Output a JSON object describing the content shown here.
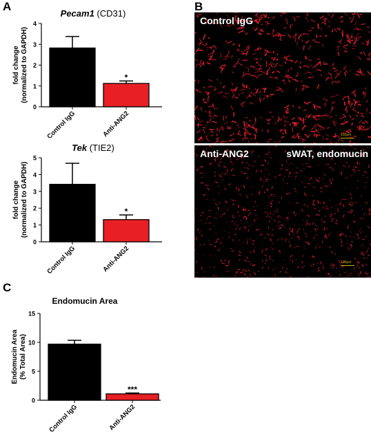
{
  "panels": {
    "a": {
      "letter": "A"
    },
    "b": {
      "letter": "B"
    },
    "c": {
      "letter": "C"
    }
  },
  "micrographs": {
    "top": {
      "label": "Control IgG",
      "scale_label": "100μm"
    },
    "bottom": {
      "label_left": "Anti-ANG2",
      "label_right": "sWAT, endomucin",
      "scale_label": "100μm"
    }
  },
  "colors": {
    "control": "#000000",
    "treatment": "#e82025",
    "stain": "#e8202a",
    "scale_bar": "#d4b000"
  },
  "chart_data": [
    {
      "type": "bar",
      "title_gene": "Pecam1",
      "title_rest": " (CD31)",
      "ylabel_line1": "fold change",
      "ylabel_line2": "(normalized to GAPDH)",
      "categories": [
        "Control IgG",
        "Anti-ANG2"
      ],
      "values": [
        2.82,
        1.12
      ],
      "errors": [
        0.55,
        0.12
      ],
      "annotations": [
        "",
        "*"
      ],
      "ylim": [
        0,
        4
      ],
      "yticks": [
        "0",
        "1",
        "2",
        "3",
        "4"
      ]
    },
    {
      "type": "bar",
      "title_gene": "Tek",
      "title_rest": " (TIE2)",
      "ylabel_line1": "fold change",
      "ylabel_line2": "(normalized to GAPDH)",
      "categories": [
        "Control IgG",
        "Anti-ANG2"
      ],
      "values": [
        3.42,
        1.32
      ],
      "errors": [
        1.25,
        0.28
      ],
      "annotations": [
        "",
        "*"
      ],
      "ylim": [
        0,
        5
      ],
      "yticks": [
        "0",
        "1",
        "2",
        "3",
        "4",
        "5"
      ]
    },
    {
      "type": "bar",
      "title": "Endomucin Area",
      "ylabel_line1": "Endomucin Area",
      "ylabel_line2": "(% Total Area)",
      "categories": [
        "Control IgG",
        "Anti-ANG2"
      ],
      "values": [
        9.7,
        1.1
      ],
      "errors": [
        0.65,
        0.15
      ],
      "annotations": [
        "",
        "***"
      ],
      "ylim": [
        0,
        15
      ],
      "yticks": [
        "0",
        "5",
        "10",
        "15"
      ]
    }
  ]
}
